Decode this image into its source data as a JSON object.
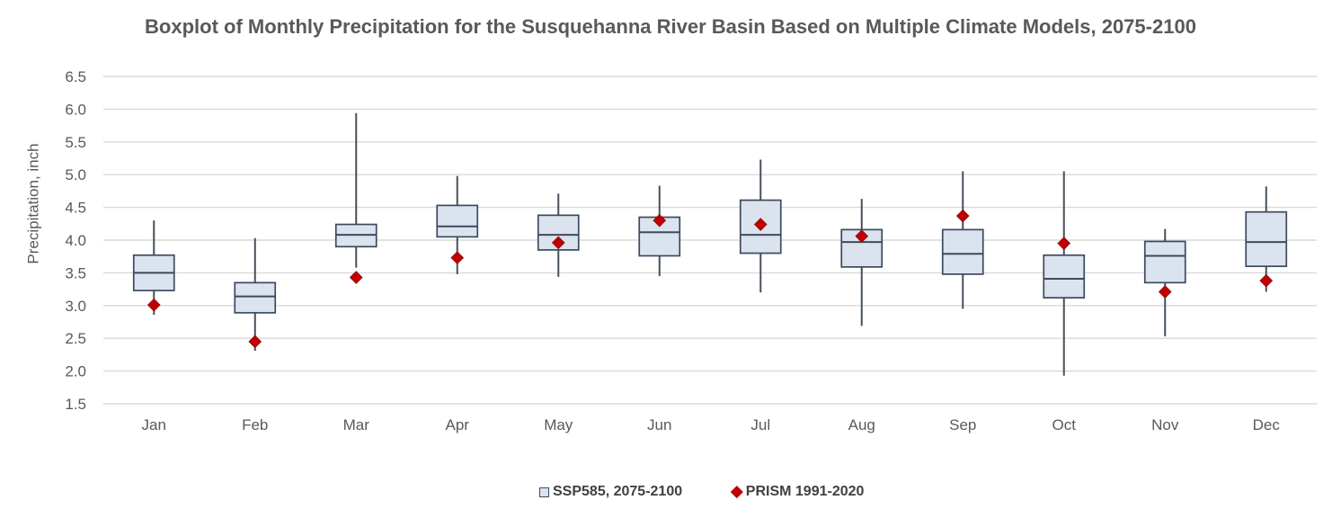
{
  "title": "Boxplot of Monthly Precipitation for the Susquehanna River Basin Based on Multiple Climate Models, 2075-2100",
  "legend": {
    "items": [
      {
        "label": "SSP585, 2075-2100",
        "marker": "box"
      },
      {
        "label": "PRISM 1991-2020",
        "marker": "diamond"
      }
    ]
  },
  "chart_data": {
    "type": "boxplot",
    "title": "Boxplot of Monthly Precipitation for the Susquehanna River Basin Based on Multiple Climate Models, 2075-2100",
    "xlabel": "",
    "ylabel": "Precipitation, inch",
    "ylim": [
      1.5,
      6.5
    ],
    "y_ticks": [
      1.5,
      2.0,
      2.5,
      3.0,
      3.5,
      4.0,
      4.5,
      5.0,
      5.5,
      6.0,
      6.5
    ],
    "y_tick_labels": [
      "1.5",
      "2.0",
      "2.5",
      "3.0",
      "3.5",
      "4.0",
      "4.5",
      "5.0",
      "5.5",
      "6.0",
      "6.5"
    ],
    "grid": "horizontal",
    "legend_position": "bottom",
    "categories": [
      "Jan",
      "Feb",
      "Mar",
      "Apr",
      "May",
      "Jun",
      "Jul",
      "Aug",
      "Sep",
      "Oct",
      "Nov",
      "Dec"
    ],
    "series": [
      {
        "name": "SSP585, 2075-2100",
        "type": "box",
        "whisker_low": [
          2.86,
          2.31,
          3.58,
          3.48,
          3.44,
          3.45,
          3.2,
          2.69,
          2.95,
          1.93,
          2.53,
          3.21
        ],
        "q1": [
          3.23,
          2.89,
          3.9,
          4.05,
          3.85,
          3.76,
          3.8,
          3.59,
          3.48,
          3.12,
          3.35,
          3.6
        ],
        "median": [
          3.5,
          3.14,
          4.08,
          4.21,
          4.08,
          4.12,
          4.08,
          3.97,
          3.79,
          3.41,
          3.76,
          3.97
        ],
        "q3": [
          3.77,
          3.35,
          4.24,
          4.53,
          4.38,
          4.35,
          4.61,
          4.16,
          4.16,
          3.77,
          3.98,
          4.43
        ],
        "whisker_high": [
          4.3,
          4.03,
          5.94,
          4.98,
          4.71,
          4.83,
          5.23,
          4.63,
          5.05,
          5.05,
          4.17,
          4.82
        ]
      },
      {
        "name": "PRISM 1991-2020",
        "type": "point",
        "values": [
          3.01,
          2.45,
          3.43,
          3.73,
          3.96,
          4.3,
          4.24,
          4.06,
          4.37,
          3.95,
          3.21,
          3.38
        ]
      }
    ],
    "style": {
      "box_fill": "#DBE3EF",
      "box_border": "#3C4A5E",
      "whisker_color": "#45505C",
      "median_color": "#3C4A5E",
      "marker_color": "#C00000",
      "grid_color": "#D9D9D9",
      "tick_text_color": "#595959",
      "title_color": "#595959",
      "legend_text_color": "#404040"
    }
  }
}
